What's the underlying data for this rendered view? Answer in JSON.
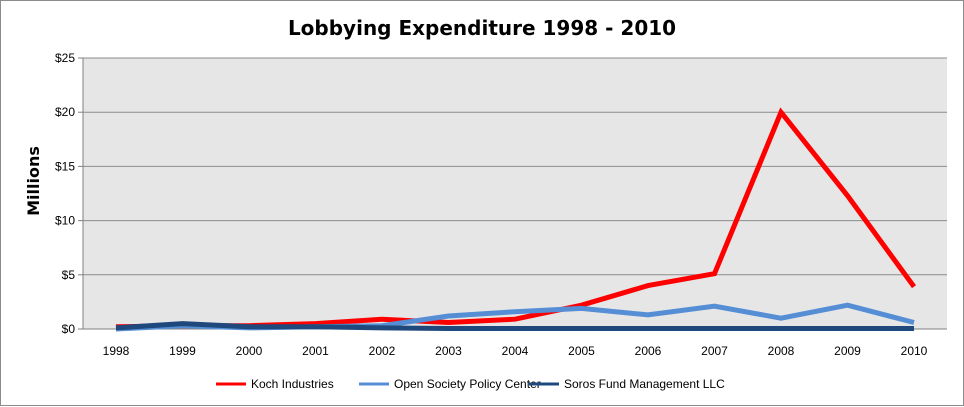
{
  "chart_data": {
    "type": "line",
    "title": "Lobbying Expenditure 1998 - 2010",
    "ylabel": "Millions",
    "xlabel": "",
    "categories": [
      "1998",
      "1999",
      "2000",
      "2001",
      "2002",
      "2003",
      "2004",
      "2005",
      "2006",
      "2007",
      "2008",
      "2009",
      "2010"
    ],
    "y_tick_labels": [
      "$0",
      "$5",
      "$10",
      "$15",
      "$20",
      "$25"
    ],
    "y_ticks": [
      0,
      5,
      10,
      15,
      20,
      25
    ],
    "ylim": [
      0,
      25
    ],
    "grid": true,
    "legend_position": "bottom",
    "plot_background": "#e6e6e6",
    "series": [
      {
        "name": "Koch Industries",
        "color": "#ff0000",
        "values": [
          0.2,
          0.3,
          0.3,
          0.5,
          0.9,
          0.6,
          0.9,
          2.2,
          4.0,
          5.1,
          20.0,
          12.3,
          3.9
        ]
      },
      {
        "name": "Open Society Policy Center",
        "color": "#558ed5",
        "values": [
          0.0,
          0.3,
          0.1,
          0.2,
          0.3,
          1.2,
          1.6,
          1.9,
          1.3,
          2.1,
          1.0,
          2.2,
          0.6
        ]
      },
      {
        "name": "Soros Fund Management LLC",
        "color": "#1f497d",
        "values": [
          0.1,
          0.5,
          0.2,
          0.2,
          0.1,
          0.05,
          0.05,
          0.05,
          0.05,
          0.05,
          0.05,
          0.05,
          0.05
        ]
      }
    ]
  }
}
